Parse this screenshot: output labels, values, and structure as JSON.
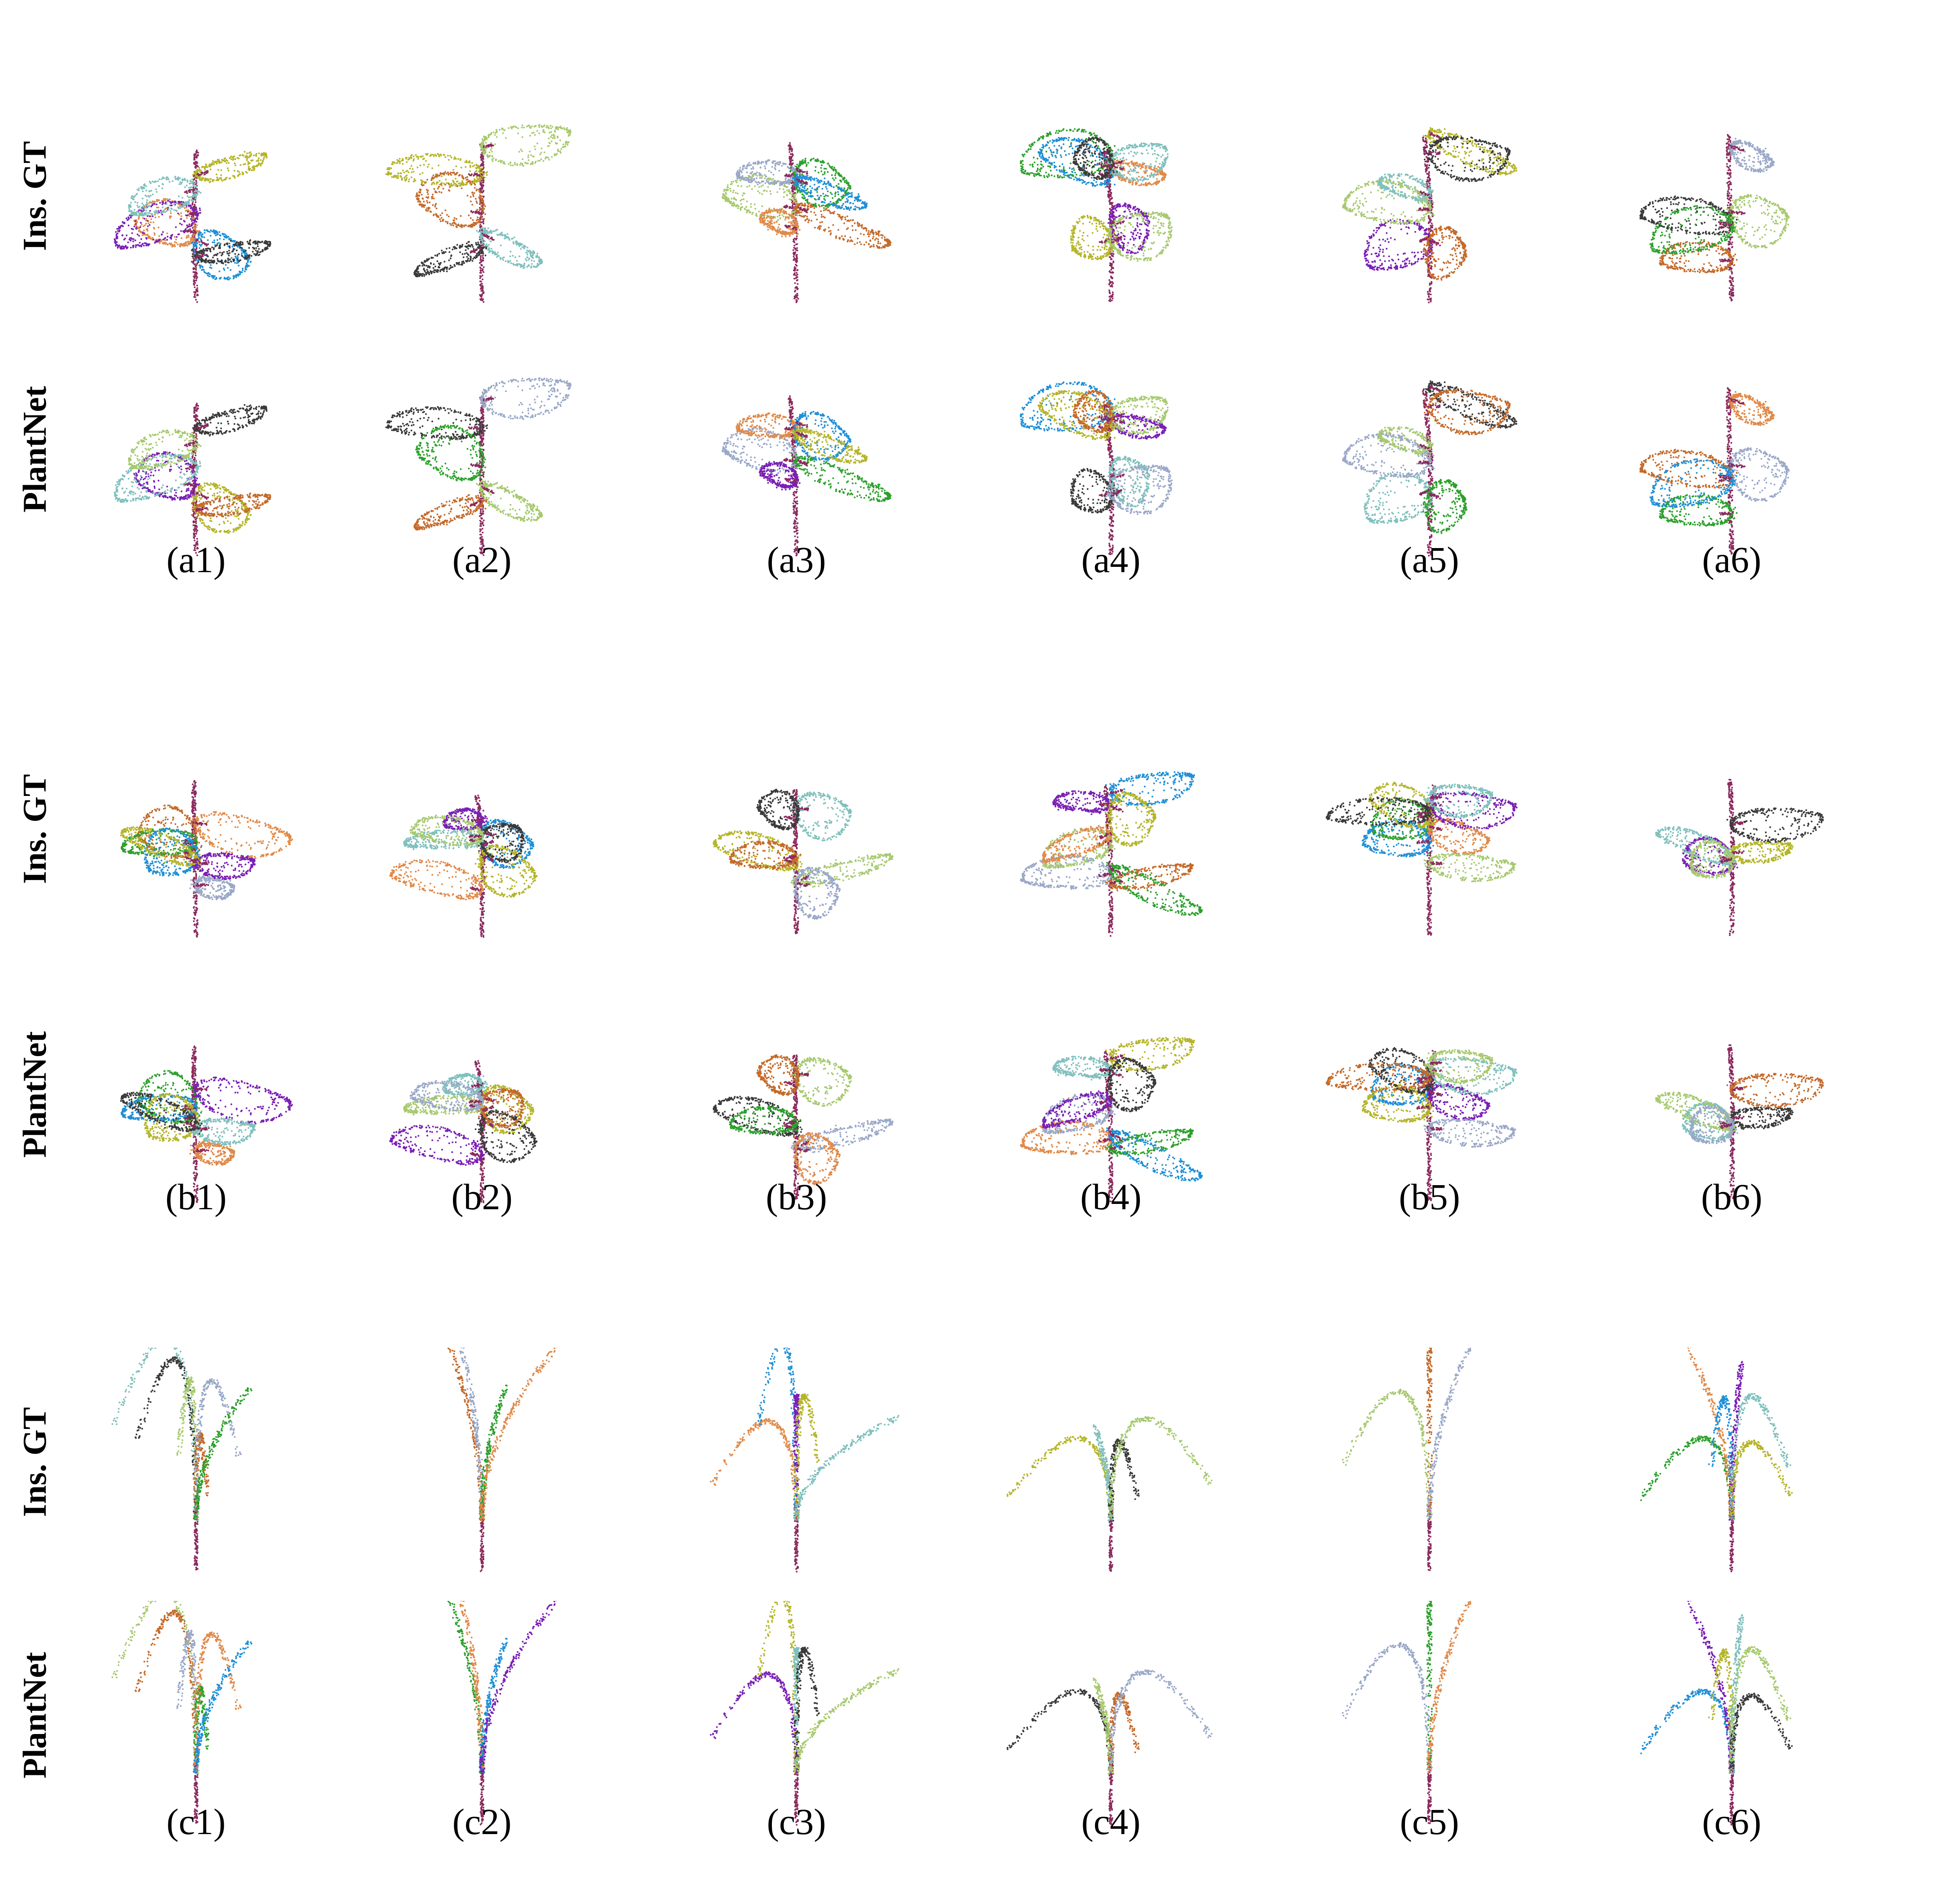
{
  "row_labels": {
    "gt": "Ins. GT",
    "pred": "PlantNet"
  },
  "groups": [
    {
      "id": "a",
      "captions": [
        "(a1)",
        "(a2)",
        "(a3)",
        "(a4)",
        "(a5)",
        "(a6)"
      ],
      "plant_type": "broadleaf"
    },
    {
      "id": "b",
      "captions": [
        "(b1)",
        "(b2)",
        "(b3)",
        "(b4)",
        "(b5)",
        "(b6)"
      ],
      "plant_type": "broadleaf"
    },
    {
      "id": "c",
      "captions": [
        "(c1)",
        "(c2)",
        "(c3)",
        "(c4)",
        "(c5)",
        "(c6)"
      ],
      "plant_type": "grass"
    }
  ],
  "colors": {
    "stem": "#8b2a5e",
    "palette": [
      "#2ca02c",
      "#e08a4a",
      "#1f8fd6",
      "#7a1fb5",
      "#b5b52a",
      "#7fc0bd",
      "#3a3a3a",
      "#a7c96f",
      "#c46a2a",
      "#9aa8c8"
    ]
  }
}
